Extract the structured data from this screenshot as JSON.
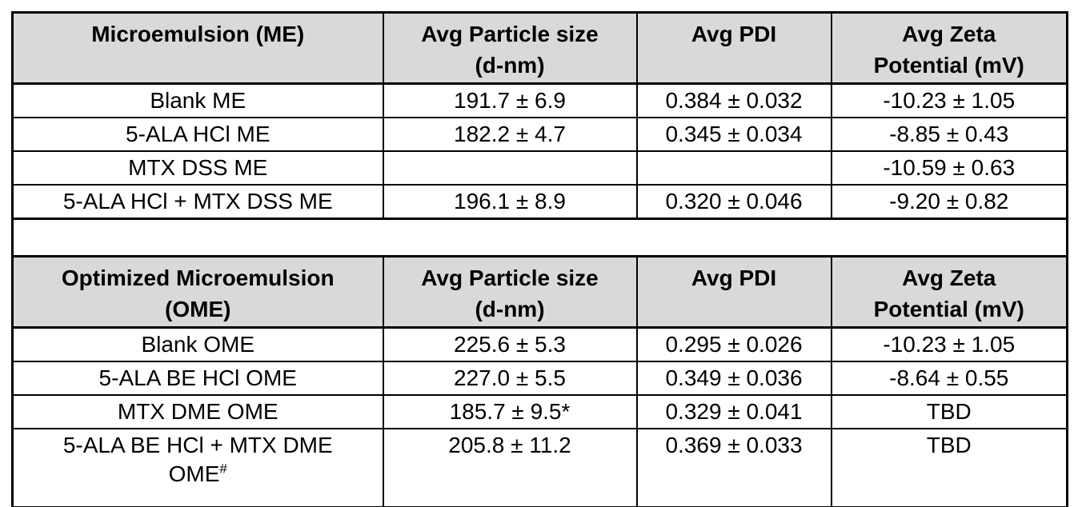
{
  "colors": {
    "header_bg": "#d9d9d9",
    "border": "#000000",
    "text": "#000000",
    "page_bg": "#ffffff"
  },
  "me_table": {
    "title": {
      "line1": "Microemulsion (ME)",
      "line2": ""
    },
    "col_particle": {
      "line1": "Avg Particle size",
      "line2": "(d-nm)"
    },
    "col_pdi": {
      "line1": "Avg PDI",
      "line2": ""
    },
    "col_zeta": {
      "line1": "Avg Zeta",
      "line2": "Potential (mV)"
    },
    "rows": [
      {
        "label1": "Blank ME",
        "label2": "",
        "sup": "",
        "particle": "191.7 ± 6.9",
        "pdi": "0.384 ± 0.032",
        "zeta": "-10.23 ± 1.05"
      },
      {
        "label1": "5-ALA HCl ME",
        "label2": "",
        "sup": "",
        "particle": "182.2 ± 4.7",
        "pdi": "0.345 ± 0.034",
        "zeta": "-8.85 ± 0.43"
      },
      {
        "label1": "MTX DSS ME",
        "label2": "",
        "sup": "",
        "particle": "",
        "pdi": "",
        "zeta": "-10.59 ± 0.63"
      },
      {
        "label1": "5-ALA HCl + MTX DSS ME",
        "label2": "",
        "sup": "",
        "particle": "196.1 ± 8.9",
        "pdi": "0.320 ± 0.046",
        "zeta": "-9.20 ± 0.82"
      }
    ]
  },
  "ome_table": {
    "title": {
      "line1": "Optimized Microemulsion",
      "line2": "(OME)"
    },
    "col_particle": {
      "line1": "Avg Particle size",
      "line2": "(d-nm)"
    },
    "col_pdi": {
      "line1": "Avg PDI",
      "line2": ""
    },
    "col_zeta": {
      "line1": "Avg Zeta",
      "line2": "Potential (mV)"
    },
    "rows": [
      {
        "label1": "Blank OME",
        "label2": "",
        "sup": "",
        "particle": "225.6 ± 5.3",
        "pdi": "0.295 ± 0.026",
        "zeta": "-10.23 ± 1.05"
      },
      {
        "label1": "5-ALA BE HCl OME",
        "label2": "",
        "sup": "",
        "particle": "227.0 ± 5.5",
        "pdi": "0.349 ± 0.036",
        "zeta": "-8.64 ± 0.55"
      },
      {
        "label1": "MTX DME OME",
        "label2": "",
        "sup": "",
        "particle": "185.7 ± 9.5*",
        "pdi": "0.329 ± 0.041",
        "zeta": "TBD"
      },
      {
        "label1": "5-ALA BE HCl + MTX DME",
        "label2": "OME",
        "sup": "#",
        "particle": "205.8 ± 11.2",
        "pdi": "0.369 ± 0.033",
        "zeta": "TBD"
      }
    ]
  }
}
